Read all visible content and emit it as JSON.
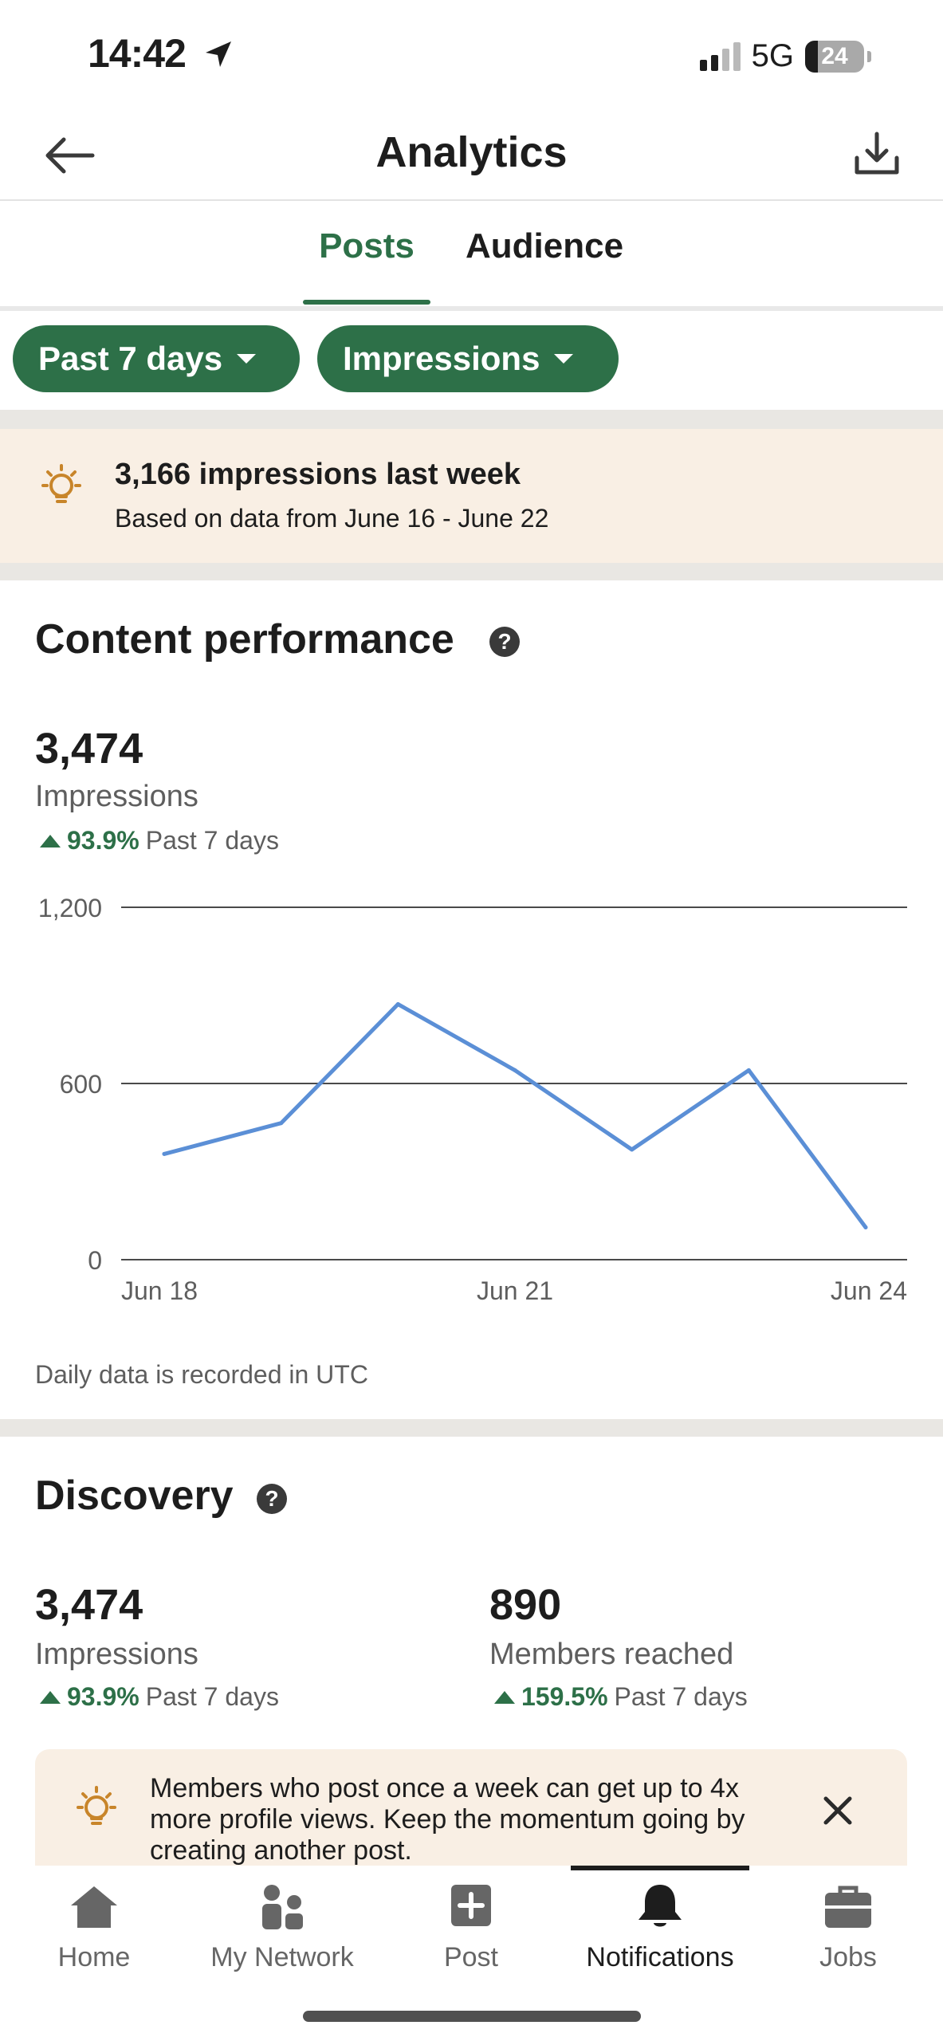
{
  "status_bar": {
    "time": "14:42",
    "network": "5G",
    "battery": "24"
  },
  "header": {
    "title": "Analytics"
  },
  "tabs": [
    {
      "label": "Posts",
      "active": true
    },
    {
      "label": "Audience",
      "active": false
    }
  ],
  "filters": {
    "period": "Past 7 days",
    "metric": "Impressions"
  },
  "insight": {
    "title": "3,166 impressions last week",
    "subtitle": "Based on data from June 16 - June 22"
  },
  "content_performance": {
    "title": "Content performance",
    "help": "?",
    "impressions": "3,474",
    "impressions_label": "Impressions",
    "delta_pct": "93.9%",
    "delta_period": "Past 7 days",
    "footnote": "Daily data is recorded in UTC"
  },
  "chart_data": {
    "type": "line",
    "x": [
      "Jun 18",
      "Jun 19",
      "Jun 20",
      "Jun 21",
      "Jun 22",
      "Jun 23",
      "Jun 24"
    ],
    "x_tick_labels": [
      "Jun 18",
      "Jun 21",
      "Jun 24"
    ],
    "series": [
      {
        "values": [
          360,
          465,
          870,
          645,
          375,
          645,
          110
        ]
      }
    ],
    "y_ticks": [
      "0",
      "600",
      "1,200"
    ],
    "ylim": [
      0,
      1200
    ],
    "grid": true,
    "line_color": "#5b8fd6"
  },
  "discovery": {
    "title": "Discovery",
    "help": "?",
    "impressions": {
      "value": "3,474",
      "label": "Impressions",
      "delta_pct": "93.9%",
      "delta_period": "Past 7 days"
    },
    "members": {
      "value": "890",
      "label": "Members reached",
      "delta_pct": "159.5%",
      "delta_period": "Past 7 days"
    },
    "tip": "Members who post once a week can get up to 4x more profile views. Keep the momentum going by creating another post."
  },
  "bottom_nav": [
    {
      "label": "Home",
      "icon": "home-icon"
    },
    {
      "label": "My Network",
      "icon": "network-icon"
    },
    {
      "label": "Post",
      "icon": "post-icon"
    },
    {
      "label": "Notifications",
      "icon": "bell-icon",
      "active": true
    },
    {
      "label": "Jobs",
      "icon": "briefcase-icon"
    }
  ],
  "colors": {
    "brand_green": "#2d7048",
    "banner_bg": "#f9efe4",
    "bulb": "#c8852a"
  }
}
